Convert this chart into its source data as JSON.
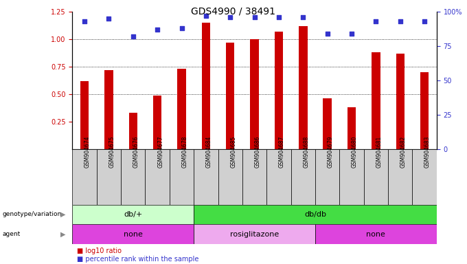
{
  "title": "GDS4990 / 38491",
  "samples": [
    "GSM904674",
    "GSM904675",
    "GSM904676",
    "GSM904677",
    "GSM904678",
    "GSM904684",
    "GSM904685",
    "GSM904686",
    "GSM904687",
    "GSM904688",
    "GSM904679",
    "GSM904680",
    "GSM904681",
    "GSM904682",
    "GSM904683"
  ],
  "log10_ratio": [
    0.62,
    0.72,
    0.33,
    0.49,
    0.73,
    1.15,
    0.97,
    1.0,
    1.07,
    1.12,
    0.46,
    0.38,
    0.88,
    0.87,
    0.7
  ],
  "percentile_rank": [
    93,
    95,
    82,
    87,
    88,
    97,
    96,
    96,
    96,
    96,
    84,
    84,
    93,
    93,
    93
  ],
  "bar_color": "#cc0000",
  "dot_color": "#3333cc",
  "ylim_left": [
    0.0,
    1.25
  ],
  "ylim_right": [
    0,
    100
  ],
  "yticks_left": [
    0.25,
    0.5,
    0.75,
    1.0,
    1.25
  ],
  "yticks_right": [
    0,
    25,
    50,
    75,
    100
  ],
  "hgrid_values": [
    0.5,
    0.75,
    1.0
  ],
  "ylabel_left_color": "#cc0000",
  "ylabel_right_color": "#3333cc",
  "genotype_groups": [
    {
      "label": "db/+",
      "start": 0,
      "end": 5,
      "color": "#ccffcc"
    },
    {
      "label": "db/db",
      "start": 5,
      "end": 15,
      "color": "#44dd44"
    }
  ],
  "agent_groups": [
    {
      "label": "none",
      "start": 0,
      "end": 5,
      "color": "#dd44dd"
    },
    {
      "label": "rosiglitazone",
      "start": 5,
      "end": 10,
      "color": "#eeaaee"
    },
    {
      "label": "none",
      "start": 10,
      "end": 15,
      "color": "#dd44dd"
    }
  ],
  "label_fontsize": 8,
  "tick_fontsize": 7,
  "title_fontsize": 10,
  "bar_width": 0.35
}
